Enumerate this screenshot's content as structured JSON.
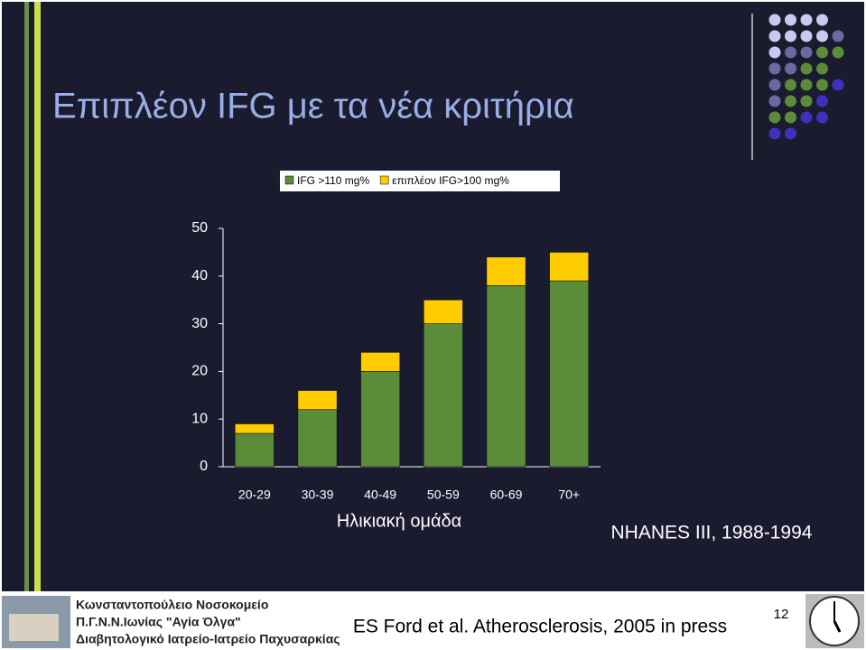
{
  "title": "Επιπλέον IFG με τα νέα κριτήρια",
  "chart_data": {
    "type": "stacked-bar",
    "categories": [
      "20-29",
      "30-39",
      "40-49",
      "50-59",
      "60-69",
      "70+"
    ],
    "series": [
      {
        "name": "IFG >110 mg%",
        "color": "#5b8c3a",
        "values": [
          7,
          12,
          20,
          30,
          38,
          39
        ]
      },
      {
        "name": "επιπλέον IFG>100 mg%",
        "color": "#ffcc00",
        "values": [
          2,
          4,
          4,
          5,
          6,
          6
        ]
      }
    ],
    "ylim": [
      0,
      50
    ],
    "yticks": [
      0,
      10,
      20,
      30,
      40,
      50
    ],
    "x_label": "Ηλικιακή ομάδα",
    "legend": "top"
  },
  "source_note": "NHANES III, 1988-1994",
  "footer": {
    "lines": [
      "Κωνσταντοπούλειο Νοσοκομείο",
      "Π.Γ.Ν.Ν.Ιωνίας \"Αγία Όλγα\"",
      "Διαβητολογικό Ιατρείο-Ιατρείο Παχυσαρκίας"
    ],
    "reference": "ES Ford et al. Atherosclerosis, 2005 in press",
    "page": "12"
  }
}
